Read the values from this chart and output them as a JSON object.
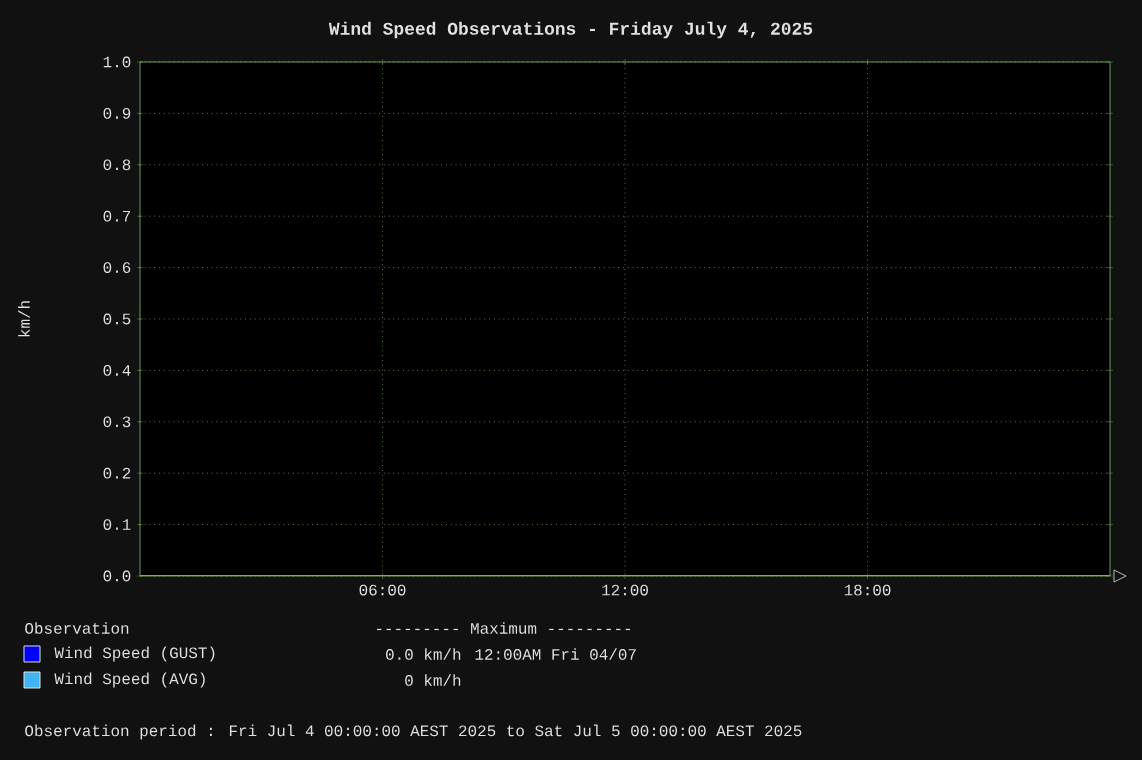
{
  "chart_data": {
    "type": "line",
    "title": "Wind Speed Observations - Friday July 4, 2025",
    "ylabel": "km/h",
    "xlim": [
      0,
      24
    ],
    "xticks": [
      {
        "value": 6,
        "label": "06:00"
      },
      {
        "value": 12,
        "label": "12:00"
      },
      {
        "value": 18,
        "label": "18:00"
      }
    ],
    "ylim": [
      0,
      1
    ],
    "yticks": [
      {
        "value": 0,
        "label": "0.0"
      },
      0.1,
      0.2,
      0.3,
      0.4,
      0.5,
      0.6,
      0.7,
      0.8,
      0.9,
      {
        "value": 1,
        "label": "1.0"
      }
    ],
    "grid": true,
    "legend": "bottom",
    "line_style": "solid",
    "series": [
      {
        "name": "Wind Speed (GUST)",
        "color": "#0000ff",
        "values": [
          null,
          null
        ]
      },
      {
        "name": "Wind Speed (AVG)",
        "color": "#3fb4f0",
        "x": [
          0,
          24
        ],
        "values": [
          0,
          0
        ]
      }
    ],
    "annotations": [
      "Observation",
      "--------- Maximum ---------",
      "0.0 km/h",
      "12:00AM Fri 04/07",
      "0 km/h",
      "Observation period : Fri Jul 4 00:00:00 AEST 2025 to Sat Jul 5 00:00:00 AEST 2025"
    ]
  }
}
